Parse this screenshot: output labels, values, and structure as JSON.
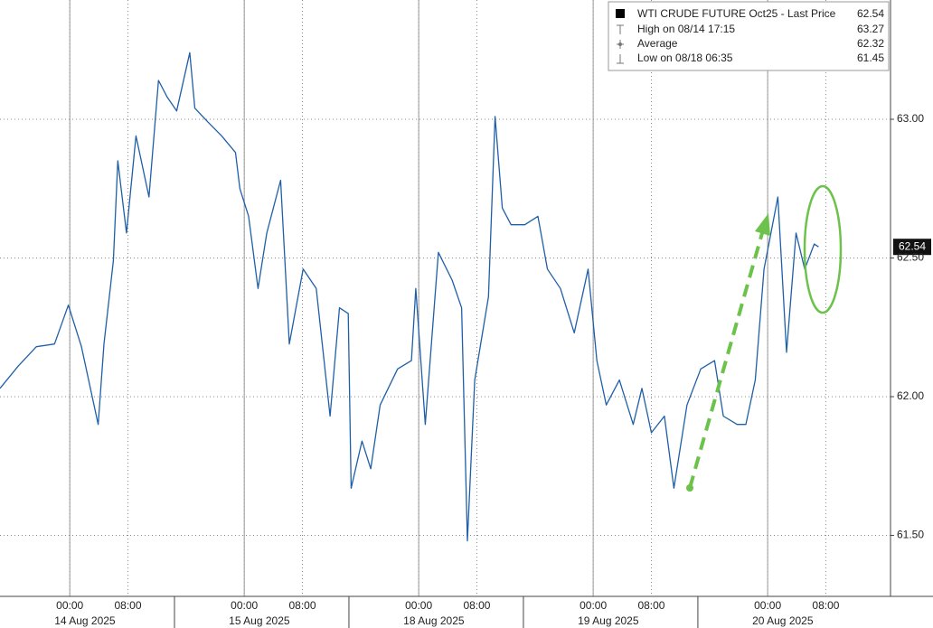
{
  "chart_data": {
    "type": "line",
    "series": [
      {
        "name": "WTI CRUDE FUTURE Oct25 - Last Price",
        "color": "#1f5fa8",
        "x": [
          -9.6,
          -7.1,
          -4.6,
          -2.1,
          -0.2,
          1.6,
          3.9,
          4.7,
          6.0,
          6.6,
          7.8,
          9.1,
          10.9,
          12.2,
          13.4,
          14.7,
          16.5,
          17.2,
          19.0,
          20.9,
          22.8,
          23.4,
          24.6,
          25.9,
          27.1,
          29.0,
          30.2,
          32.1,
          33.9,
          35.8,
          37.1,
          38.3,
          38.7,
          40.2,
          41.4,
          42.7,
          45.1,
          47.0,
          47.6,
          48.9,
          50.7,
          52.6,
          53.9,
          54.7,
          55.7,
          57.6,
          58.5,
          59.5,
          60.7,
          62.6,
          64.4,
          65.7,
          67.5,
          69.4,
          71.3,
          72.5,
          73.8,
          75.6,
          77.5,
          78.7,
          80.0,
          81.8,
          83.1,
          84.9,
          86.8,
          88.7,
          89.9,
          91.8,
          93.0,
          94.3,
          95.5,
          97.4,
          98.6,
          99.9,
          101.1,
          102.4,
          103.0
        ],
        "values": [
          62.03,
          62.11,
          62.18,
          62.19,
          62.33,
          62.18,
          61.9,
          62.19,
          62.49,
          62.85,
          62.59,
          62.94,
          62.72,
          63.14,
          63.08,
          63.03,
          63.24,
          63.04,
          62.99,
          62.94,
          62.88,
          62.75,
          62.65,
          62.39,
          62.59,
          62.78,
          62.19,
          62.46,
          62.39,
          61.93,
          62.32,
          62.3,
          61.67,
          61.84,
          61.74,
          61.97,
          62.1,
          62.13,
          62.39,
          61.9,
          62.52,
          62.42,
          62.32,
          61.48,
          62.06,
          62.36,
          63.01,
          62.68,
          62.62,
          62.62,
          62.65,
          62.46,
          62.39,
          62.23,
          62.46,
          62.13,
          61.97,
          62.06,
          61.9,
          62.03,
          61.87,
          61.93,
          61.67,
          61.97,
          62.1,
          62.13,
          61.93,
          61.9,
          61.9,
          62.06,
          62.46,
          62.72,
          62.16,
          62.59,
          62.46,
          62.55,
          62.54
        ]
      }
    ],
    "last_price": 62.54,
    "legend_stats": [
      {
        "label": "High on 08/14 17:15",
        "value": 63.27
      },
      {
        "label": "Average",
        "value": 62.32
      },
      {
        "label": "Low on 08/18 06:35",
        "value": 61.45
      }
    ],
    "xlim": [
      -9.6,
      112.9
    ],
    "xticks": [
      {
        "value": 0,
        "label": "00:00"
      },
      {
        "value": 8,
        "label": "08:00"
      },
      {
        "value": 24,
        "label": "00:00"
      },
      {
        "value": 32,
        "label": "08:00"
      },
      {
        "value": 48,
        "label": "00:00"
      },
      {
        "value": 56,
        "label": "08:00"
      },
      {
        "value": 72,
        "label": "00:00"
      },
      {
        "value": 80,
        "label": "08:00"
      },
      {
        "value": 96,
        "label": "00:00"
      },
      {
        "value": 104,
        "label": "08:00"
      }
    ],
    "x_date_labels": [
      {
        "value": 0,
        "label": "14 Aug 2025"
      },
      {
        "value": 24,
        "label": "15 Aug 2025"
      },
      {
        "value": 48,
        "label": "18 Aug 2025"
      },
      {
        "value": 72,
        "label": "19 Aug 2025"
      },
      {
        "value": 96,
        "label": "20 Aug 2025"
      }
    ],
    "ylim": [
      61.28,
      63.43
    ],
    "yticks": [
      {
        "value": 61.5,
        "label": "61.50"
      },
      {
        "value": 62,
        "label": "62.00"
      },
      {
        "value": 62.5,
        "label": "62.50"
      },
      {
        "value": 63,
        "label": "63.00"
      }
    ],
    "grid": true
  }
}
